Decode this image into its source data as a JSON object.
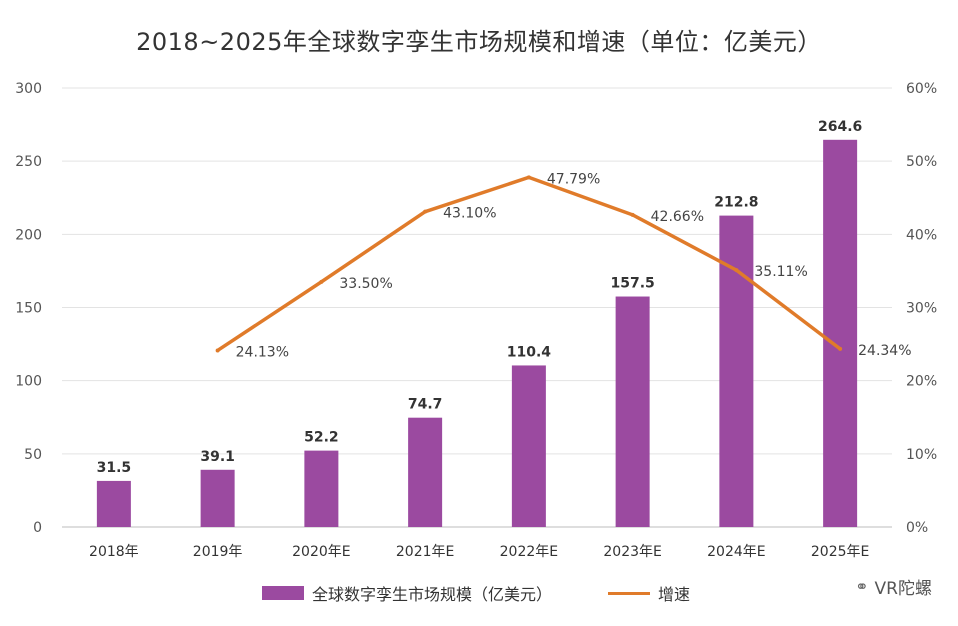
{
  "chart_data": {
    "type": "bar",
    "title": "2018~2025年全球数字孪生市场规模和增速（单位：亿美元）",
    "categories": [
      "2018年",
      "2019年",
      "2020年E",
      "2021年E",
      "2022年E",
      "2023年E",
      "2024年E",
      "2025年E"
    ],
    "series": [
      {
        "name": "全球数字孪生市场规模（亿美元）",
        "type": "bar",
        "axis": "left",
        "values": [
          31.5,
          39.1,
          52.2,
          74.7,
          110.4,
          157.5,
          212.8,
          264.6
        ],
        "labels": [
          "31.5",
          "39.1",
          "52.2",
          "74.7",
          "110.4",
          "157.5",
          "212.8",
          "264.6"
        ],
        "color": "#9b4aa0"
      },
      {
        "name": "增速",
        "type": "line",
        "axis": "right",
        "values": [
          null,
          24.13,
          33.5,
          43.1,
          47.79,
          42.66,
          35.11,
          24.34
        ],
        "labels": [
          "",
          "24.13%",
          "33.50%",
          "43.10%",
          "47.79%",
          "42.66%",
          "35.11%",
          "24.34%"
        ],
        "color": "#e07b2a"
      }
    ],
    "ylim": [
      0,
      300
    ],
    "y_ticks": [
      "0",
      "50",
      "100",
      "150",
      "200",
      "250",
      "300"
    ],
    "y2lim": [
      0,
      60
    ],
    "y2_ticks": [
      "0%",
      "10%",
      "20%",
      "30%",
      "40%",
      "50%",
      "60%"
    ],
    "legend_position": "bottom"
  },
  "watermark": {
    "icon": "wechat-icon",
    "text": "VR陀螺"
  }
}
